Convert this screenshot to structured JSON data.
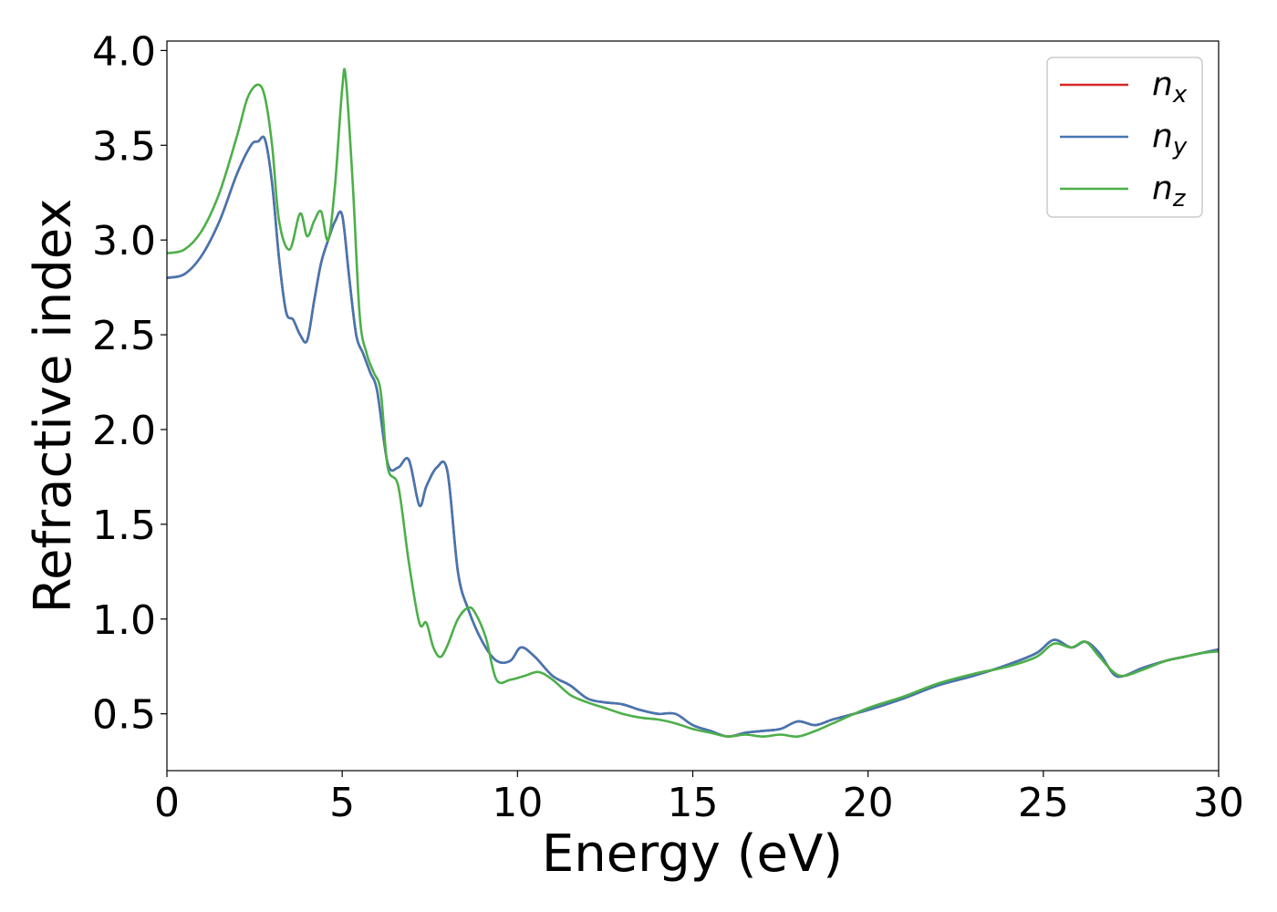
{
  "chart_data": {
    "type": "line",
    "xlabel": "Energy (eV)",
    "ylabel": "Refractive index",
    "xlim": [
      0,
      30
    ],
    "ylim": [
      0.2,
      4.05
    ],
    "xticks": [
      0,
      5,
      10,
      15,
      20,
      25,
      30
    ],
    "yticks": [
      0.5,
      1.0,
      1.5,
      2.0,
      2.5,
      3.0,
      3.5,
      4.0
    ],
    "xtick_labels": [
      "0",
      "5",
      "10",
      "15",
      "20",
      "25",
      "30"
    ],
    "ytick_labels": [
      "0.5",
      "1.0",
      "1.5",
      "2.0",
      "2.5",
      "3.0",
      "3.5",
      "4.0"
    ],
    "grid": false,
    "legend_position": "top-right",
    "series": [
      {
        "name_base": "n",
        "name_sub": "x",
        "color": "#d62728",
        "x": [
          0,
          0.5,
          1.0,
          1.5,
          2.0,
          2.4,
          2.6,
          2.8,
          3.0,
          3.2,
          3.4,
          3.6,
          3.8,
          4.0,
          4.2,
          4.4,
          4.6,
          4.8,
          5.0,
          5.2,
          5.4,
          5.6,
          5.8,
          6.0,
          6.3,
          6.6,
          6.9,
          7.2,
          7.4,
          7.7,
          8.0,
          8.3,
          8.6,
          9.0,
          9.4,
          9.8,
          10.1,
          10.5,
          11.0,
          11.5,
          12.0,
          12.5,
          13.0,
          13.5,
          14.0,
          14.5,
          15.0,
          15.5,
          16.0,
          16.5,
          17.0,
          17.5,
          18.0,
          18.5,
          19.0,
          20.0,
          21.0,
          22.0,
          23.0,
          24.0,
          24.8,
          25.3,
          25.8,
          26.2,
          26.6,
          27.0,
          27.3,
          27.8,
          28.5,
          29.0,
          29.5,
          30.0
        ],
        "y": [
          2.8,
          2.82,
          2.92,
          3.1,
          3.35,
          3.5,
          3.52,
          3.53,
          3.3,
          2.9,
          2.62,
          2.58,
          2.5,
          2.47,
          2.68,
          2.88,
          3.0,
          3.1,
          3.13,
          2.8,
          2.5,
          2.4,
          2.3,
          2.2,
          1.82,
          1.8,
          1.84,
          1.6,
          1.7,
          1.8,
          1.78,
          1.25,
          1.05,
          0.88,
          0.78,
          0.78,
          0.85,
          0.8,
          0.7,
          0.65,
          0.58,
          0.56,
          0.55,
          0.52,
          0.5,
          0.5,
          0.44,
          0.41,
          0.38,
          0.4,
          0.41,
          0.42,
          0.46,
          0.44,
          0.47,
          0.52,
          0.58,
          0.65,
          0.7,
          0.76,
          0.82,
          0.89,
          0.85,
          0.88,
          0.82,
          0.71,
          0.7,
          0.74,
          0.78,
          0.8,
          0.82,
          0.84
        ]
      },
      {
        "name_base": "n",
        "name_sub": "y",
        "color": "#4476b2",
        "x": [
          0,
          0.5,
          1.0,
          1.5,
          2.0,
          2.4,
          2.6,
          2.8,
          3.0,
          3.2,
          3.4,
          3.6,
          3.8,
          4.0,
          4.2,
          4.4,
          4.6,
          4.8,
          5.0,
          5.2,
          5.4,
          5.6,
          5.8,
          6.0,
          6.3,
          6.6,
          6.9,
          7.2,
          7.4,
          7.7,
          8.0,
          8.3,
          8.6,
          9.0,
          9.4,
          9.8,
          10.1,
          10.5,
          11.0,
          11.5,
          12.0,
          12.5,
          13.0,
          13.5,
          14.0,
          14.5,
          15.0,
          15.5,
          16.0,
          16.5,
          17.0,
          17.5,
          18.0,
          18.5,
          19.0,
          20.0,
          21.0,
          22.0,
          23.0,
          24.0,
          24.8,
          25.3,
          25.8,
          26.2,
          26.6,
          27.0,
          27.3,
          27.8,
          28.5,
          29.0,
          29.5,
          30.0
        ],
        "y": [
          2.8,
          2.82,
          2.92,
          3.1,
          3.35,
          3.5,
          3.52,
          3.53,
          3.3,
          2.9,
          2.62,
          2.58,
          2.5,
          2.47,
          2.68,
          2.88,
          3.0,
          3.1,
          3.13,
          2.8,
          2.5,
          2.4,
          2.3,
          2.2,
          1.82,
          1.8,
          1.84,
          1.6,
          1.7,
          1.8,
          1.78,
          1.25,
          1.05,
          0.88,
          0.78,
          0.78,
          0.85,
          0.8,
          0.7,
          0.65,
          0.58,
          0.56,
          0.55,
          0.52,
          0.5,
          0.5,
          0.44,
          0.41,
          0.38,
          0.4,
          0.41,
          0.42,
          0.46,
          0.44,
          0.47,
          0.52,
          0.58,
          0.65,
          0.7,
          0.76,
          0.82,
          0.89,
          0.85,
          0.88,
          0.82,
          0.71,
          0.7,
          0.74,
          0.78,
          0.8,
          0.82,
          0.84
        ]
      },
      {
        "name_base": "n",
        "name_sub": "z",
        "color": "#4daf4a",
        "x": [
          0,
          0.5,
          1.0,
          1.5,
          2.0,
          2.3,
          2.6,
          2.8,
          3.0,
          3.2,
          3.5,
          3.8,
          4.0,
          4.2,
          4.4,
          4.6,
          4.8,
          5.0,
          5.1,
          5.3,
          5.5,
          5.7,
          5.9,
          6.1,
          6.3,
          6.6,
          6.9,
          7.2,
          7.4,
          7.6,
          7.8,
          8.0,
          8.3,
          8.6,
          8.8,
          9.1,
          9.4,
          9.8,
          10.2,
          10.6,
          11.0,
          11.5,
          12.0,
          12.5,
          13.0,
          13.5,
          14.0,
          14.5,
          15.0,
          15.5,
          16.0,
          16.5,
          17.0,
          17.5,
          18.0,
          18.5,
          19.0,
          20.0,
          21.0,
          22.0,
          23.0,
          24.0,
          24.8,
          25.3,
          25.8,
          26.2,
          26.6,
          27.0,
          27.3,
          27.8,
          28.5,
          29.0,
          29.5,
          30.0
        ],
        "y": [
          2.93,
          2.95,
          3.05,
          3.25,
          3.55,
          3.75,
          3.82,
          3.75,
          3.5,
          3.1,
          2.95,
          3.14,
          3.02,
          3.1,
          3.15,
          3.0,
          3.3,
          3.8,
          3.86,
          3.3,
          2.6,
          2.4,
          2.3,
          2.2,
          1.8,
          1.7,
          1.3,
          0.98,
          0.98,
          0.85,
          0.8,
          0.86,
          1.0,
          1.06,
          1.03,
          0.9,
          0.68,
          0.68,
          0.7,
          0.72,
          0.68,
          0.6,
          0.56,
          0.53,
          0.5,
          0.48,
          0.47,
          0.45,
          0.42,
          0.4,
          0.38,
          0.39,
          0.38,
          0.39,
          0.38,
          0.41,
          0.45,
          0.53,
          0.59,
          0.66,
          0.71,
          0.75,
          0.8,
          0.87,
          0.85,
          0.88,
          0.8,
          0.72,
          0.7,
          0.73,
          0.78,
          0.8,
          0.82,
          0.83
        ]
      }
    ]
  }
}
